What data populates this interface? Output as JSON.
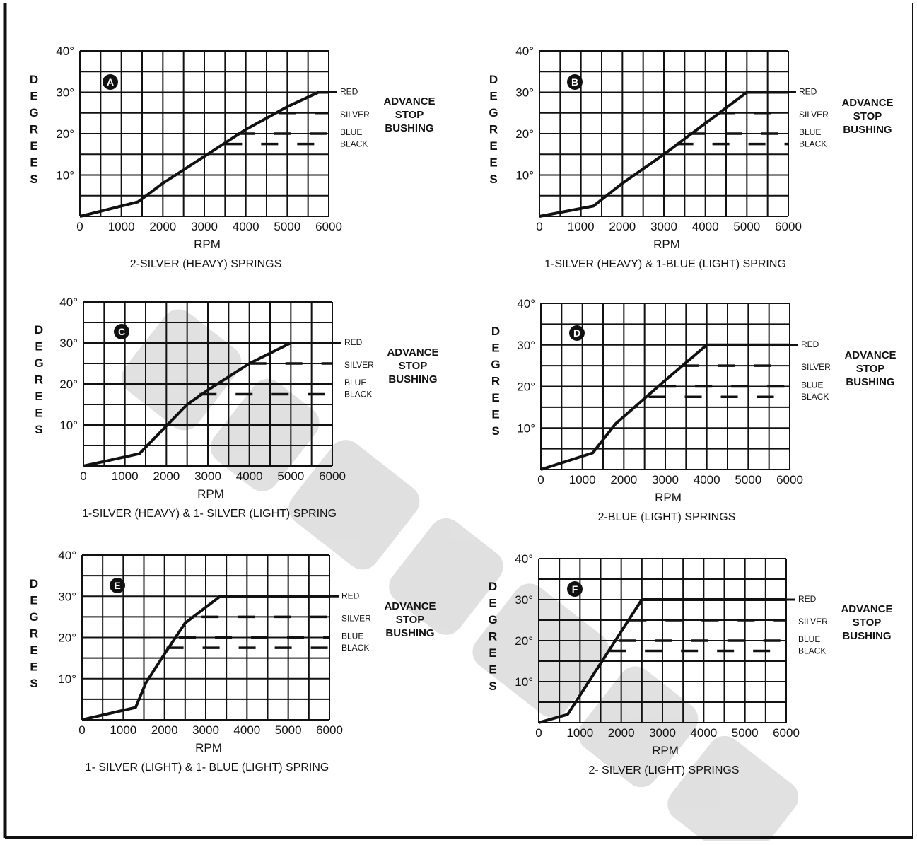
{
  "domain": "Chart",
  "chart_data": [
    {
      "id": "A",
      "type": "line",
      "letter": "A",
      "caption": "2-SILVER (HEAVY) SPRINGS",
      "xlabel": "RPM",
      "ylabel": "DEGREES",
      "xlim": [
        0,
        6000
      ],
      "ylim": [
        0,
        40
      ],
      "x_ticks": [
        "0",
        "1000",
        "2000",
        "3000",
        "4000",
        "5000",
        "6000"
      ],
      "y_ticks": [
        "10°",
        "20°",
        "30°",
        "40°"
      ],
      "grid": true,
      "series": [
        {
          "x": [
            0,
            1400,
            2000,
            3000,
            4000,
            5000,
            5750,
            6000
          ],
          "y": [
            0,
            3.5,
            8,
            14.5,
            21,
            26.5,
            30,
            30
          ]
        }
      ],
      "bushing_levels": [
        {
          "label": "RED",
          "value": 30,
          "start_rpm": 5750
        },
        {
          "label": "SILVER",
          "value": 25,
          "start_rpm": 4800
        },
        {
          "label": "BLUE",
          "value": 20,
          "start_rpm": 3800
        },
        {
          "label": "BLACK",
          "value": 17.5,
          "start_rpm": 3500
        }
      ],
      "annotation": [
        "ADVANCE",
        "STOP",
        "BUSHING"
      ]
    },
    {
      "id": "B",
      "type": "line",
      "letter": "B",
      "caption": "1-SILVER (HEAVY) & 1-BLUE (LIGHT) SPRING",
      "xlabel": "RPM",
      "ylabel": "DEGREES",
      "xlim": [
        0,
        6000
      ],
      "ylim": [
        0,
        40
      ],
      "x_ticks": [
        "0",
        "1000",
        "2000",
        "3000",
        "4000",
        "5000",
        "6000"
      ],
      "y_ticks": [
        "10°",
        "20°",
        "30°",
        "40°"
      ],
      "grid": true,
      "series": [
        {
          "x": [
            0,
            1300,
            2000,
            3000,
            4000,
            5000,
            6000
          ],
          "y": [
            0,
            2.5,
            8,
            15,
            22.5,
            30,
            30
          ]
        }
      ],
      "bushing_levels": [
        {
          "label": "RED",
          "value": 30,
          "start_rpm": 5000
        },
        {
          "label": "SILVER",
          "value": 25,
          "start_rpm": 4300
        },
        {
          "label": "BLUE",
          "value": 20,
          "start_rpm": 3600
        },
        {
          "label": "BLACK",
          "value": 17.5,
          "start_rpm": 3300
        }
      ],
      "annotation": [
        "ADVANCE",
        "STOP",
        "BUSHING"
      ]
    },
    {
      "id": "C",
      "type": "line",
      "letter": "C",
      "caption": "1-SILVER (HEAVY) & 1- SILVER (LIGHT) SPRING",
      "xlabel": "RPM",
      "ylabel": "DEGREES",
      "xlim": [
        0,
        6000
      ],
      "ylim": [
        0,
        40
      ],
      "x_ticks": [
        "0",
        "1000",
        "2000",
        "3000",
        "4000",
        "5000",
        "6000"
      ],
      "y_ticks": [
        "10°",
        "20°",
        "30°",
        "40°"
      ],
      "grid": true,
      "series": [
        {
          "x": [
            0,
            1350,
            2500,
            3000,
            4000,
            5000,
            6000
          ],
          "y": [
            0,
            3,
            15,
            18.5,
            25,
            30,
            30
          ]
        }
      ],
      "bushing_levels": [
        {
          "label": "RED",
          "value": 30,
          "start_rpm": 5000
        },
        {
          "label": "SILVER",
          "value": 25,
          "start_rpm": 4000
        },
        {
          "label": "BLUE",
          "value": 20,
          "start_rpm": 3300
        },
        {
          "label": "BLACK",
          "value": 17.5,
          "start_rpm": 2800
        }
      ],
      "annotation": [
        "ADVANCE",
        "STOP",
        "BUSHING"
      ]
    },
    {
      "id": "D",
      "type": "line",
      "letter": "D",
      "caption": "2-BLUE (LIGHT) SPRINGS",
      "xlabel": "RPM",
      "ylabel": "DEGREES",
      "xlim": [
        0,
        6000
      ],
      "ylim": [
        0,
        40
      ],
      "x_ticks": [
        "0",
        "1000",
        "2000",
        "3000",
        "4000",
        "5000",
        "6000"
      ],
      "y_ticks": [
        "10°",
        "20°",
        "30°",
        "40°"
      ],
      "grid": true,
      "series": [
        {
          "x": [
            0,
            1250,
            1800,
            3000,
            4000,
            6000
          ],
          "y": [
            0,
            4,
            11,
            21.5,
            30,
            30
          ]
        }
      ],
      "bushing_levels": [
        {
          "label": "RED",
          "value": 30,
          "start_rpm": 4000
        },
        {
          "label": "SILVER",
          "value": 25,
          "start_rpm": 3400
        },
        {
          "label": "BLUE",
          "value": 20,
          "start_rpm": 2850
        },
        {
          "label": "BLACK",
          "value": 17.5,
          "start_rpm": 2600
        }
      ],
      "annotation": [
        "ADVANCE",
        "STOP",
        "BUSHING"
      ]
    },
    {
      "id": "E",
      "type": "line",
      "letter": "E",
      "caption": "1- SILVER (LIGHT) & 1- BLUE (LIGHT) SPRING",
      "xlabel": "RPM",
      "ylabel": "DEGREES",
      "xlim": [
        0,
        6000
      ],
      "ylim": [
        0,
        40
      ],
      "x_ticks": [
        "0",
        "1000",
        "2000",
        "3000",
        "4000",
        "5000",
        "6000"
      ],
      "y_ticks": [
        "10°",
        "20°",
        "30°",
        "40°"
      ],
      "grid": true,
      "series": [
        {
          "x": [
            0,
            1300,
            1550,
            2000,
            2500,
            3350,
            6000
          ],
          "y": [
            0,
            3,
            9,
            16,
            23.5,
            30,
            30
          ]
        }
      ],
      "bushing_levels": [
        {
          "label": "RED",
          "value": 30,
          "start_rpm": 3350
        },
        {
          "label": "SILVER",
          "value": 25,
          "start_rpm": 2900
        },
        {
          "label": "BLUE",
          "value": 20,
          "start_rpm": 2350
        },
        {
          "label": "BLACK",
          "value": 17.5,
          "start_rpm": 2050
        }
      ],
      "annotation": [
        "ADVANCE",
        "STOP",
        "BUSHING"
      ]
    },
    {
      "id": "F",
      "type": "line",
      "letter": "F",
      "caption": "2- SILVER (LIGHT) SPRINGS",
      "xlabel": "RPM",
      "ylabel": "DEGREES",
      "xlim": [
        0,
        6000
      ],
      "ylim": [
        0,
        40
      ],
      "x_ticks": [
        "0",
        "1000",
        "2000",
        "3000",
        "4000",
        "5000",
        "6000"
      ],
      "y_ticks": [
        "10°",
        "20°",
        "30°",
        "40°"
      ],
      "grid": true,
      "series": [
        {
          "x": [
            0,
            700,
            2500,
            6000
          ],
          "y": [
            0,
            2,
            30,
            30
          ]
        }
      ],
      "bushing_levels": [
        {
          "label": "RED",
          "value": 30,
          "start_rpm": 2500
        },
        {
          "label": "SILVER",
          "value": 25,
          "start_rpm": 2200
        },
        {
          "label": "BLUE",
          "value": 20,
          "start_rpm": 1950
        },
        {
          "label": "BLACK",
          "value": 17.5,
          "start_rpm": 1700
        }
      ],
      "annotation": [
        "ADVANCE",
        "STOP",
        "BUSHING"
      ]
    }
  ]
}
